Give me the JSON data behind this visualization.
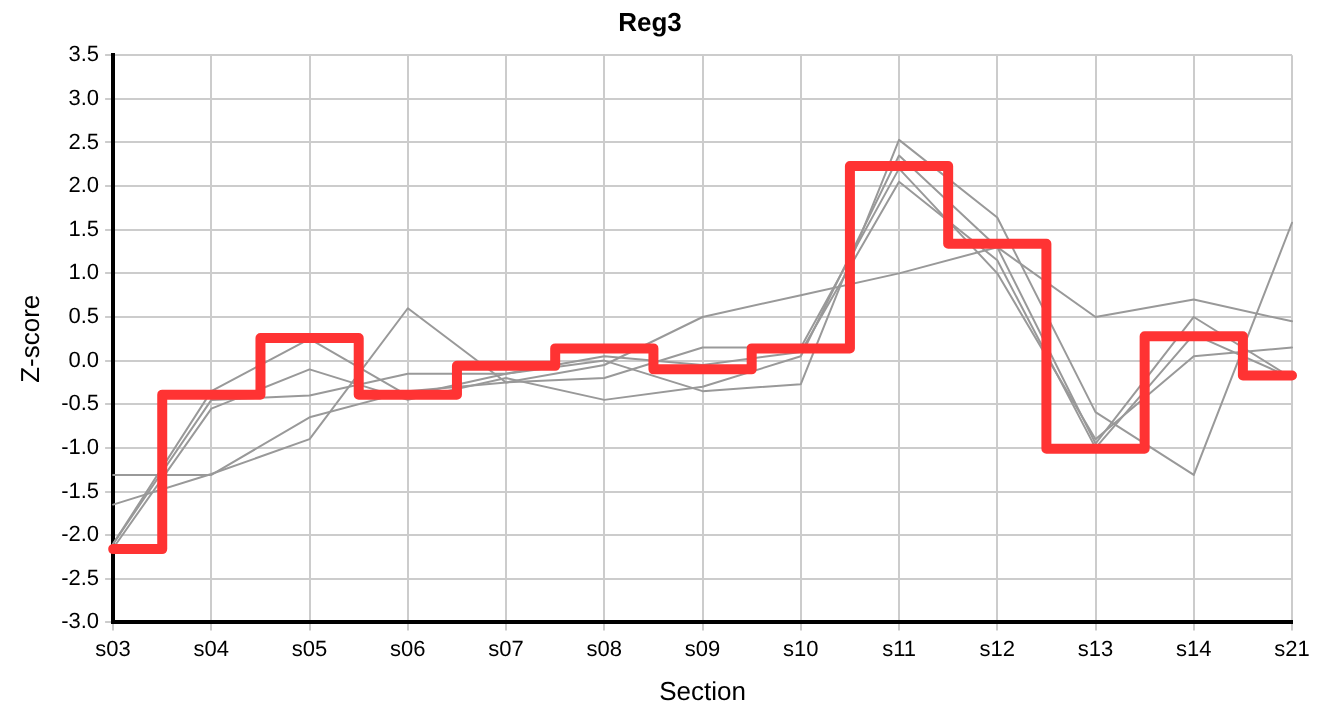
{
  "chart_data": {
    "type": "line",
    "title": "Reg3",
    "xlabel": "Section",
    "ylabel": "Z-score",
    "categories": [
      "s03",
      "s04",
      "s05",
      "s06",
      "s07",
      "s08",
      "s09",
      "s10",
      "s11",
      "s12",
      "s13",
      "s14",
      "s21"
    ],
    "ylim": [
      -3.0,
      3.5
    ],
    "yticks": [
      {
        "value": -3,
        "label": "-3.0"
      },
      {
        "value": -2.5,
        "label": "-2.5"
      },
      {
        "value": -2,
        "label": "-2.0"
      },
      {
        "value": -1.5,
        "label": "-1.5"
      },
      {
        "value": -1,
        "label": "-1.0"
      },
      {
        "value": -0.5,
        "label": "-0.5"
      },
      {
        "value": 0,
        "label": "0.0"
      },
      {
        "value": 0.5,
        "label": "0.5"
      },
      {
        "value": 1,
        "label": "1.0"
      },
      {
        "value": 1.5,
        "label": "1.5"
      },
      {
        "value": 2,
        "label": "2.0"
      },
      {
        "value": 2.5,
        "label": "2.5"
      },
      {
        "value": 3,
        "label": "3.0"
      },
      {
        "value": 3.5,
        "label": "3.5"
      }
    ],
    "grid": true,
    "legend": false,
    "marker": "none",
    "line_style": "solid",
    "series": [
      {
        "type": "line",
        "color": "#999999",
        "values": [
          -1.31,
          -1.31,
          -0.65,
          -0.35,
          -0.25,
          -0.05,
          0.5,
          0.75,
          1.0,
          1.3,
          0.5,
          0.7,
          0.45
        ]
      },
      {
        "type": "line",
        "color": "#999999",
        "values": [
          -2.1,
          -0.35,
          0.25,
          -0.4,
          -0.15,
          0.0,
          -0.35,
          -0.27,
          2.53,
          1.64,
          -0.59,
          -1.31,
          1.58
        ]
      },
      {
        "type": "line",
        "color": "#999999",
        "values": [
          -2.15,
          -0.55,
          -0.1,
          -0.45,
          -0.2,
          -0.45,
          -0.3,
          0.05,
          2.35,
          1.3,
          -0.95,
          0.5,
          -0.2
        ]
      },
      {
        "type": "line",
        "color": "#999999",
        "values": [
          -1.65,
          -1.3,
          -0.9,
          0.6,
          -0.25,
          -0.2,
          0.15,
          0.15,
          2.2,
          1.0,
          -0.9,
          0.05,
          0.15
        ]
      },
      {
        "type": "line",
        "color": "#999999",
        "values": [
          -2.1,
          -0.45,
          -0.4,
          -0.15,
          -0.15,
          0.05,
          -0.05,
          0.1,
          2.05,
          1.15,
          -1.0,
          0.3,
          -0.2
        ]
      },
      {
        "type": "step",
        "color": "#ff3333",
        "values": [
          -2.16,
          -0.39,
          0.26,
          -0.39,
          -0.06,
          0.14,
          -0.1,
          0.14,
          2.23,
          1.34,
          -1.01,
          0.28,
          -0.17
        ]
      }
    ]
  }
}
